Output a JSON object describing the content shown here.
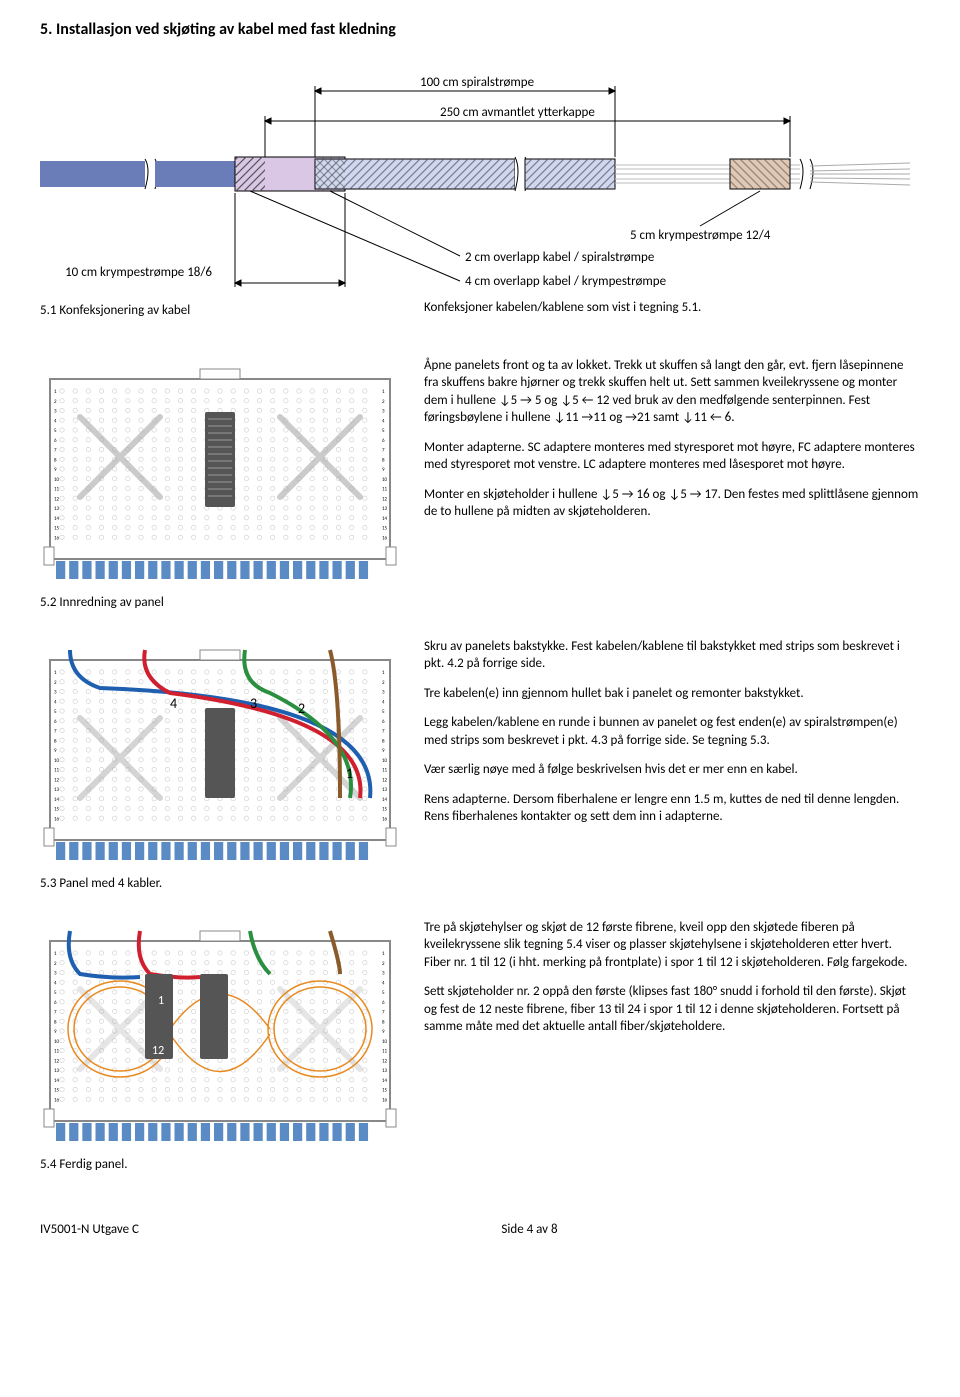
{
  "heading": "5. Installasjon ved skjøting av kabel med fast kledning",
  "diagram": {
    "labels": {
      "spiral_100": "100 cm spiralstrømpe",
      "ytterkappe_250": "250 cm avmantlet ytterkappe",
      "krympe_5": "5 cm krympestrømpe 12/4",
      "overlapp_spiral": "2 cm overlapp kabel / spiralstrømpe",
      "krympe_10": "10 cm krympestrømpe 18/6",
      "overlapp_krympe": "4 cm overlapp kabel / krympestrømpe"
    },
    "colors": {
      "cable": "#6b7db8",
      "spiral_fill": "#cfd8f0",
      "krympe10_fill": "#d9c7e5",
      "krympe5_fill": "#e0c8b5",
      "hatch": "#555",
      "arrow": "#000",
      "text": "#000",
      "fiber": "#bbb"
    }
  },
  "section51_caption": "5.1 Konfeksjonering av kabel",
  "section51_body": "Konfeksjoner kabelen/kablene som vist i tegning 5.1.",
  "section52": {
    "caption": "5.2 Innredning av panel",
    "p1": "Åpne panelets front og ta av lokket. Trekk ut skuffen så langt den går, evt. fjern låsepinnene fra skuffens bakre hjørner og trekk skuffen helt ut. Sett sammen kveilekryssene og monter dem i hullene ↓5 → 5 og ↓5 ← 12 ved bruk av den medfølgende senterpinnen. Fest føringsbøylene i hullene ↓11 →11 og →21 samt ↓11 ← 6.",
    "p2": "Monter adapterne. SC adaptere monteres med styresporet mot høyre, FC adaptere monteres med styresporet mot venstre. LC adaptere monteres med låsesporet mot høyre.",
    "p3": "Monter en skjøteholder i hullene ↓5 → 16 og ↓5 → 17.  Den festes med splittlåsene gjennom de to hullene på midten av skjøteholderen."
  },
  "section53": {
    "caption": "5.3 Panel med 4 kabler.",
    "p1": "Skru av panelets bakstykke. Fest kabelen/kablene til bakstykket med strips som beskrevet i pkt. 4.2 på forrige side.",
    "p2": "Tre kabelen(e) inn gjennom hullet bak i panelet og remonter bakstykket.",
    "p3": "Legg kabelen/kablene en runde i bunnen av panelet og fest enden(e) av spiralstrømpen(e) med strips som beskrevet i pkt. 4.3 på forrige side. Se tegning 5.3.",
    "p4": "Vær særlig nøye med å følge beskrivelsen hvis det er mer enn en kabel.",
    "p5": "Rens adapterne. Dersom fiberhalene er lengre enn 1.5 m, kuttes de ned til denne lengden. Rens fiberhalenes kontakter og sett dem inn i adapterne."
  },
  "section54": {
    "caption": "5.4 Ferdig panel.",
    "p1": "Tre på skjøtehylser og skjøt de 12 første fibrene, kveil opp den skjøtede fiberen på kveilekryssene slik tegning 5.4 viser og plasser skjøtehylsene i skjøteholderen etter hvert. Fiber nr. 1 til 12 (i hht. merking på frontplate) i spor 1 til 12 i skjøteholderen. Følg fargekode.",
    "p2": "Sett skjøteholder nr. 2 oppå den første (klipses fast 180° snudd i forhold til den første). Skjøt og fest de 12 neste fibrene, fiber 13 til 24 i spor 1 til 12 i denne skjøteholderen. Fortsett på samme måte med det aktuelle antall fiber/skjøteholdere."
  },
  "footer": {
    "left": "IV5001-N Utgave C",
    "right": "Side 4 av 8"
  },
  "panel": {
    "rows": 16,
    "cols": 24,
    "colors": {
      "frame": "#888",
      "hole": "#ccc",
      "adapter": "#5b8bc4",
      "holder": "#555",
      "cross": "#aaa",
      "label": "#000",
      "cable_blue": "#1e5fb0",
      "cable_red": "#d02030",
      "cable_green": "#2a9040",
      "cable_brown": "#8a5a2a",
      "cable_orange": "#e88a20",
      "num_labels": [
        "1",
        "2",
        "3",
        "4"
      ]
    }
  }
}
